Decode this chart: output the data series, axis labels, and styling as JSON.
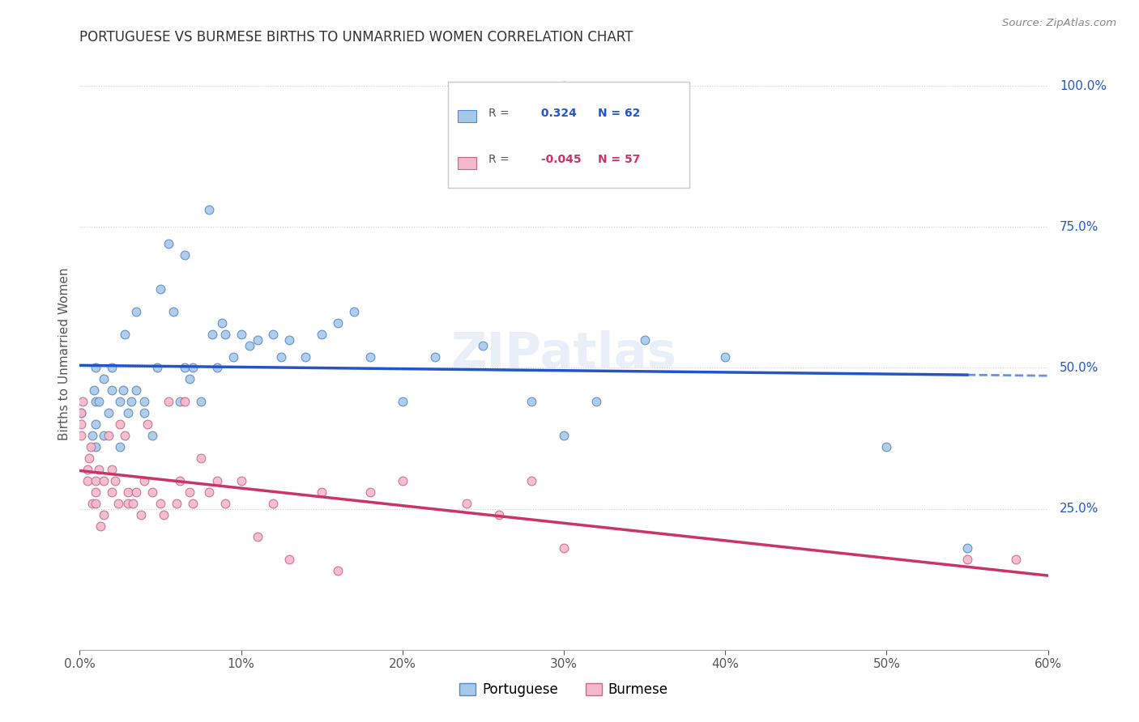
{
  "title": "PORTUGUESE VS BURMESE BIRTHS TO UNMARRIED WOMEN CORRELATION CHART",
  "source": "Source: ZipAtlas.com",
  "ylabel": "Births to Unmarried Women",
  "legend_portuguese": "Portuguese",
  "legend_burmese": "Burmese",
  "r_portuguese": 0.324,
  "n_portuguese": 62,
  "r_burmese": -0.045,
  "n_burmese": 57,
  "portuguese_color": "#a8c8e8",
  "burmese_color": "#f4b8cc",
  "portuguese_edge_color": "#5588cc",
  "burmese_edge_color": "#cc6688",
  "portuguese_line_color": "#2255cc",
  "burmese_line_color": "#cc3366",
  "watermark": "ZIPatlas",
  "portuguese_x": [
    0.001,
    0.008,
    0.009,
    0.01,
    0.01,
    0.01,
    0.01,
    0.012,
    0.015,
    0.015,
    0.018,
    0.02,
    0.02,
    0.025,
    0.025,
    0.027,
    0.028,
    0.03,
    0.032,
    0.035,
    0.035,
    0.04,
    0.04,
    0.045,
    0.048,
    0.05,
    0.055,
    0.058,
    0.062,
    0.065,
    0.065,
    0.068,
    0.07,
    0.075,
    0.08,
    0.082,
    0.085,
    0.088,
    0.09,
    0.095,
    0.1,
    0.105,
    0.11,
    0.12,
    0.125,
    0.13,
    0.14,
    0.15,
    0.16,
    0.17,
    0.18,
    0.2,
    0.22,
    0.25,
    0.28,
    0.3,
    0.3,
    0.32,
    0.35,
    0.4,
    0.5,
    0.55
  ],
  "portuguese_y": [
    0.42,
    0.38,
    0.46,
    0.4,
    0.44,
    0.36,
    0.5,
    0.44,
    0.38,
    0.48,
    0.42,
    0.46,
    0.5,
    0.36,
    0.44,
    0.46,
    0.56,
    0.42,
    0.44,
    0.46,
    0.6,
    0.42,
    0.44,
    0.38,
    0.5,
    0.64,
    0.72,
    0.6,
    0.44,
    0.7,
    0.5,
    0.48,
    0.5,
    0.44,
    0.78,
    0.56,
    0.5,
    0.58,
    0.56,
    0.52,
    0.56,
    0.54,
    0.55,
    0.56,
    0.52,
    0.55,
    0.52,
    0.56,
    0.58,
    0.6,
    0.52,
    0.44,
    0.52,
    0.54,
    0.44,
    0.38,
    1.0,
    0.44,
    0.55,
    0.52,
    0.36,
    0.18
  ],
  "burmese_x": [
    0.001,
    0.001,
    0.001,
    0.002,
    0.005,
    0.005,
    0.006,
    0.007,
    0.008,
    0.01,
    0.01,
    0.01,
    0.012,
    0.013,
    0.015,
    0.015,
    0.018,
    0.02,
    0.02,
    0.022,
    0.024,
    0.025,
    0.028,
    0.03,
    0.03,
    0.033,
    0.035,
    0.038,
    0.04,
    0.042,
    0.045,
    0.05,
    0.052,
    0.055,
    0.06,
    0.062,
    0.065,
    0.068,
    0.07,
    0.075,
    0.08,
    0.085,
    0.09,
    0.1,
    0.11,
    0.12,
    0.13,
    0.15,
    0.16,
    0.18,
    0.2,
    0.24,
    0.26,
    0.28,
    0.3,
    0.55,
    0.58
  ],
  "burmese_y": [
    0.38,
    0.4,
    0.42,
    0.44,
    0.3,
    0.32,
    0.34,
    0.36,
    0.26,
    0.26,
    0.28,
    0.3,
    0.32,
    0.22,
    0.24,
    0.3,
    0.38,
    0.28,
    0.32,
    0.3,
    0.26,
    0.4,
    0.38,
    0.26,
    0.28,
    0.26,
    0.28,
    0.24,
    0.3,
    0.4,
    0.28,
    0.26,
    0.24,
    0.44,
    0.26,
    0.3,
    0.44,
    0.28,
    0.26,
    0.34,
    0.28,
    0.3,
    0.26,
    0.3,
    0.2,
    0.26,
    0.16,
    0.28,
    0.14,
    0.28,
    0.3,
    0.26,
    0.24,
    0.3,
    0.18,
    0.16,
    0.16
  ],
  "xlim": [
    0.0,
    0.6
  ],
  "ylim": [
    0.0,
    1.05
  ],
  "background_color": "#ffffff",
  "grid_color": "#cccccc"
}
